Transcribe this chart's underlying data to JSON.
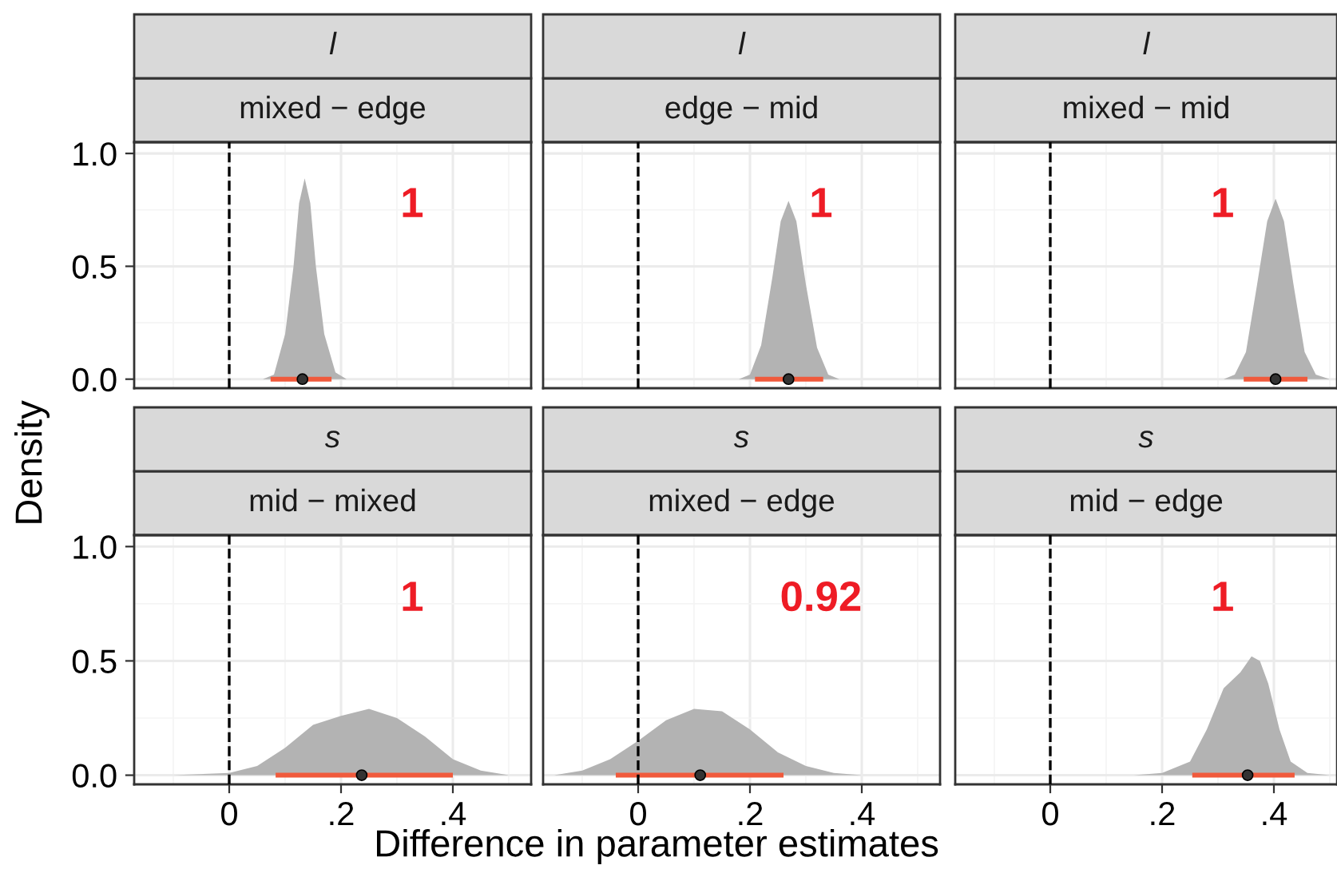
{
  "chart_data": [
    {
      "type": "area",
      "title": "l",
      "subtitle": "mixed − edge",
      "ylabel": "Density",
      "tick_labels": "y",
      "grid": true,
      "xlim": [
        -0.17,
        0.54
      ],
      "ylim": [
        -0.04,
        1.05
      ],
      "xticks": [
        {
          "value": -0.1,
          "label": null
        },
        0,
        {
          "value": 0.1,
          "label": null
        },
        0.2,
        {
          "value": 0.3,
          "label": null
        },
        0.4,
        {
          "value": 0.5,
          "label": null
        }
      ],
      "yticks": [
        {
          "value": 0,
          "label": "0.0"
        },
        {
          "value": 0.25,
          "label": null
        },
        {
          "value": 0.5,
          "label": "0.5"
        },
        {
          "value": 0.75,
          "label": null
        },
        {
          "value": 1,
          "label": "1.0"
        }
      ],
      "ref_lines": [
        {
          "axis": "x",
          "value": 0,
          "color": "#000000",
          "line_style": "dashed"
        }
      ],
      "annotations": [
        "1"
      ],
      "series": [
        {
          "type": "area",
          "color": "#b3b3b3",
          "x": [
            0.06,
            0.08,
            0.1,
            0.115,
            0.125,
            0.135,
            0.145,
            0.155,
            0.17,
            0.19,
            0.21
          ],
          "values": [
            0,
            0.02,
            0.2,
            0.5,
            0.78,
            0.89,
            0.78,
            0.5,
            0.2,
            0.03,
            0
          ]
        },
        {
          "type": "scatter",
          "color": "#333333",
          "x": [
            0.131
          ],
          "values": [
            0
          ],
          "xerrors": [
            [
              0.074,
              0.183
            ]
          ]
        }
      ]
    },
    {
      "type": "area",
      "title": "l",
      "subtitle": "edge − mid",
      "tick_labels": false,
      "grid": true,
      "xlim": [
        -0.17,
        0.54
      ],
      "ylim": [
        -0.04,
        1.05
      ],
      "xticks": [
        {
          "value": -0.1,
          "label": null
        },
        0,
        {
          "value": 0.1,
          "label": null
        },
        0.2,
        {
          "value": 0.3,
          "label": null
        },
        0.4,
        {
          "value": 0.5,
          "label": null
        }
      ],
      "yticks": [
        0,
        {
          "value": 0.25,
          "label": null
        },
        0.5,
        {
          "value": 0.75,
          "label": null
        },
        1
      ],
      "ref_lines": [
        {
          "axis": "x",
          "value": 0,
          "color": "#000000",
          "line_style": "dashed"
        }
      ],
      "annotations": [
        "1"
      ],
      "series": [
        {
          "type": "area",
          "color": "#b3b3b3",
          "x": [
            0.18,
            0.2,
            0.22,
            0.24,
            0.255,
            0.269,
            0.283,
            0.3,
            0.32,
            0.34,
            0.36
          ],
          "values": [
            0,
            0.02,
            0.15,
            0.45,
            0.7,
            0.79,
            0.7,
            0.42,
            0.14,
            0.02,
            0
          ]
        },
        {
          "type": "scatter",
          "color": "#333333",
          "x": [
            0.269
          ],
          "values": [
            0
          ],
          "xerrors": [
            [
              0.209,
              0.331
            ]
          ]
        }
      ]
    },
    {
      "type": "area",
      "title": "l",
      "subtitle": "mixed − mid",
      "tick_labels": false,
      "grid": true,
      "xlim": [
        -0.17,
        0.513
      ],
      "ylim": [
        -0.04,
        1.05
      ],
      "xticks": [
        {
          "value": -0.1,
          "label": null
        },
        0,
        {
          "value": 0.1,
          "label": null
        },
        0.2,
        {
          "value": 0.3,
          "label": null
        },
        0.4,
        {
          "value": 0.5,
          "label": null
        }
      ],
      "yticks": [
        0,
        {
          "value": 0.25,
          "label": null
        },
        0.5,
        {
          "value": 0.75,
          "label": null
        },
        1
      ],
      "ref_lines": [
        {
          "axis": "x",
          "value": 0,
          "color": "#000000",
          "line_style": "dashed"
        }
      ],
      "annotations": [
        "1"
      ],
      "series": [
        {
          "type": "area",
          "color": "#b3b3b3",
          "x": [
            0.31,
            0.33,
            0.35,
            0.37,
            0.388,
            0.403,
            0.418,
            0.435,
            0.455,
            0.475,
            0.5
          ],
          "values": [
            0,
            0.02,
            0.12,
            0.42,
            0.7,
            0.8,
            0.7,
            0.42,
            0.12,
            0.02,
            0
          ]
        },
        {
          "type": "scatter",
          "color": "#333333",
          "x": [
            0.403
          ],
          "values": [
            0
          ],
          "xerrors": [
            [
              0.346,
              0.46
            ]
          ]
        }
      ]
    },
    {
      "type": "area",
      "title": "s",
      "subtitle": "mid − mixed",
      "grid": true,
      "xlim": [
        -0.17,
        0.54
      ],
      "ylim": [
        -0.04,
        1.05
      ],
      "xticks": [
        {
          "value": -0.1,
          "label": null
        },
        {
          "value": 0,
          "label": "0"
        },
        {
          "value": 0.1,
          "label": null
        },
        {
          "value": 0.2,
          "label": ".2"
        },
        {
          "value": 0.3,
          "label": null
        },
        {
          "value": 0.4,
          "label": ".4"
        },
        {
          "value": 0.5,
          "label": null
        }
      ],
      "yticks": [
        {
          "value": 0,
          "label": "0.0"
        },
        {
          "value": 0.25,
          "label": null
        },
        {
          "value": 0.5,
          "label": "0.5"
        },
        {
          "value": 0.75,
          "label": null
        },
        {
          "value": 1,
          "label": "1.0"
        }
      ],
      "ref_lines": [
        {
          "axis": "x",
          "value": 0,
          "color": "#000000",
          "line_style": "dashed"
        }
      ],
      "annotations": [
        "1"
      ],
      "series": [
        {
          "type": "area",
          "color": "#b3b3b3",
          "x": [
            -0.1,
            0,
            0.05,
            0.1,
            0.15,
            0.2,
            0.25,
            0.3,
            0.35,
            0.4,
            0.45,
            0.5
          ],
          "values": [
            0,
            0.01,
            0.04,
            0.12,
            0.22,
            0.26,
            0.29,
            0.25,
            0.17,
            0.07,
            0.02,
            0
          ]
        },
        {
          "type": "scatter",
          "color": "#333333",
          "x": [
            0.237
          ],
          "values": [
            0
          ],
          "xerrors": [
            [
              0.083,
              0.4
            ]
          ]
        }
      ]
    },
    {
      "type": "area",
      "title": "s",
      "subtitle": "mixed − edge",
      "xlabel": "Difference in parameter estimates",
      "tick_labels": "x",
      "grid": true,
      "xlim": [
        -0.17,
        0.54
      ],
      "ylim": [
        -0.04,
        1.05
      ],
      "xticks": [
        {
          "value": -0.1,
          "label": null
        },
        {
          "value": 0,
          "label": "0"
        },
        {
          "value": 0.1,
          "label": null
        },
        {
          "value": 0.2,
          "label": ".2"
        },
        {
          "value": 0.3,
          "label": null
        },
        {
          "value": 0.4,
          "label": ".4"
        },
        {
          "value": 0.5,
          "label": null
        }
      ],
      "yticks": [
        0,
        {
          "value": 0.25,
          "label": null
        },
        0.5,
        {
          "value": 0.75,
          "label": null
        },
        1
      ],
      "ref_lines": [
        {
          "axis": "x",
          "value": 0,
          "color": "#000000",
          "line_style": "dashed"
        }
      ],
      "annotations": [
        "0.92"
      ],
      "series": [
        {
          "type": "area",
          "color": "#b3b3b3",
          "x": [
            -0.15,
            -0.1,
            -0.05,
            0,
            0.05,
            0.1,
            0.15,
            0.2,
            0.25,
            0.3,
            0.35,
            0.4
          ],
          "values": [
            0,
            0.02,
            0.07,
            0.15,
            0.24,
            0.29,
            0.28,
            0.2,
            0.1,
            0.04,
            0.01,
            0
          ]
        },
        {
          "type": "scatter",
          "color": "#333333",
          "x": [
            0.111
          ],
          "values": [
            0
          ],
          "xerrors": [
            [
              -0.04,
              0.26
            ]
          ]
        }
      ]
    },
    {
      "type": "area",
      "title": "s",
      "subtitle": "mid − edge",
      "tick_labels": "x",
      "grid": true,
      "xlim": [
        -0.17,
        0.513
      ],
      "ylim": [
        -0.04,
        1.05
      ],
      "xticks": [
        {
          "value": -0.1,
          "label": null
        },
        {
          "value": 0,
          "label": "0"
        },
        {
          "value": 0.1,
          "label": null
        },
        {
          "value": 0.2,
          "label": ".2"
        },
        {
          "value": 0.3,
          "label": null
        },
        {
          "value": 0.4,
          "label": ".4"
        },
        {
          "value": 0.5,
          "label": null
        }
      ],
      "yticks": [
        0,
        {
          "value": 0.25,
          "label": null
        },
        0.5,
        {
          "value": 0.75,
          "label": null
        },
        1
      ],
      "ref_lines": [
        {
          "axis": "x",
          "value": 0,
          "color": "#000000",
          "line_style": "dashed"
        }
      ],
      "annotations": [
        "1"
      ],
      "series": [
        {
          "type": "area",
          "color": "#b3b3b3",
          "x": [
            0.15,
            0.2,
            0.25,
            0.28,
            0.31,
            0.34,
            0.36,
            0.375,
            0.39,
            0.41,
            0.43,
            0.46,
            0.5
          ],
          "values": [
            0,
            0.01,
            0.06,
            0.2,
            0.38,
            0.45,
            0.52,
            0.5,
            0.4,
            0.2,
            0.06,
            0.01,
            0
          ]
        },
        {
          "type": "scatter",
          "color": "#333333",
          "x": [
            0.353
          ],
          "values": [
            0
          ],
          "xerrors": [
            [
              0.254,
              0.437
            ]
          ]
        }
      ]
    }
  ]
}
